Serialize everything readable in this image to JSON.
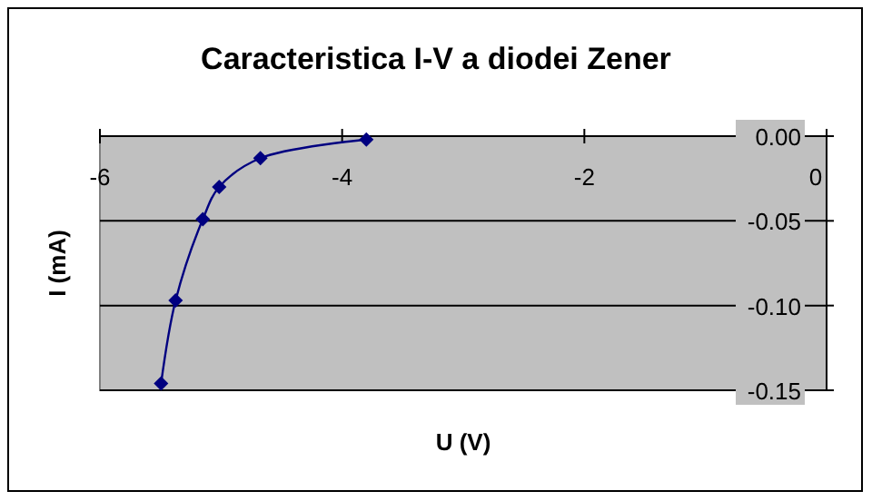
{
  "chart_data": {
    "type": "line",
    "title": "Caracteristica I-V a diodei Zener",
    "xlabel": "U (V)",
    "ylabel": "I (mA)",
    "series": [
      {
        "color": "#000080",
        "x": [
          -3.8,
          -4.675,
          -5.015,
          -5.15,
          -5.375,
          -5.495
        ],
        "values": [
          -0.002,
          -0.013,
          -0.03,
          -0.049,
          -0.097,
          -0.146
        ]
      }
    ],
    "xlim": [
      -6,
      0
    ],
    "xticks": [
      -6,
      -4,
      -2,
      0
    ],
    "ylim": [
      -0.15,
      0
    ],
    "yticks": [
      {
        "value": 0,
        "label": "0.00"
      },
      {
        "value": -0.05,
        "label": "-0.05"
      },
      {
        "value": -0.1,
        "label": "-0.10"
      },
      {
        "value": -0.15,
        "label": "-0.15"
      }
    ],
    "grid": "y",
    "marker": "diamond",
    "line_style": "solid"
  }
}
